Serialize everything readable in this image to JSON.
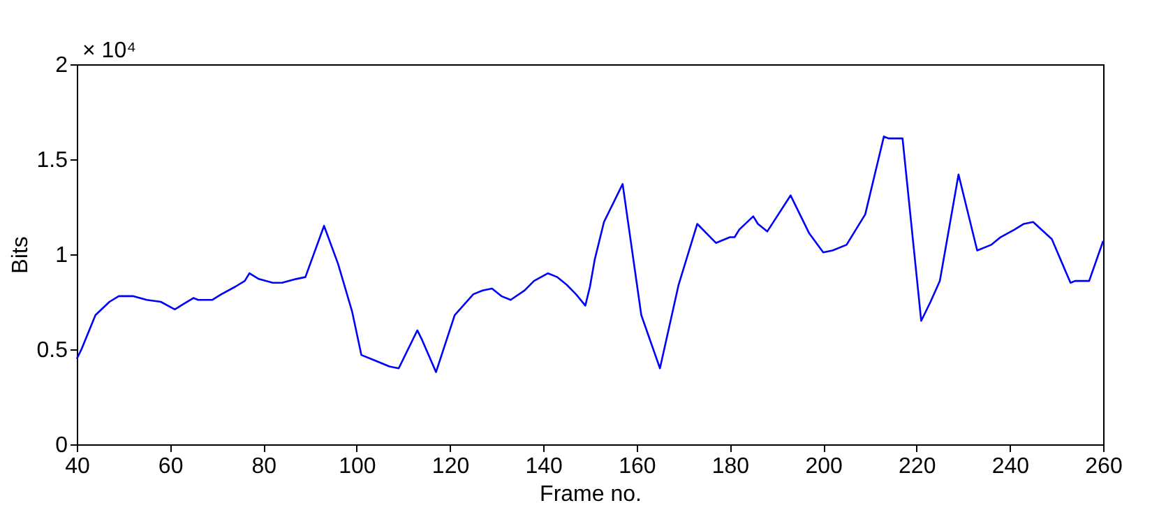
{
  "chart_data": {
    "type": "line",
    "xlabel": "Frame no.",
    "ylabel": "Bits",
    "annotations": [
      "× 10⁴"
    ],
    "x": [
      40,
      41,
      44,
      47,
      49,
      52,
      55,
      58,
      61,
      63,
      65,
      66,
      69,
      71,
      74,
      76,
      77,
      79,
      82,
      84,
      87,
      89,
      93,
      96,
      99,
      101,
      104,
      107,
      109,
      113,
      114,
      117,
      121,
      125,
      127,
      129,
      131,
      133,
      136,
      138,
      141,
      143,
      145,
      147,
      149,
      150,
      151,
      153,
      157,
      161,
      165,
      169,
      173,
      177,
      180,
      181,
      182,
      185,
      186,
      188,
      193,
      197,
      200,
      202,
      205,
      207,
      209,
      213,
      214,
      217,
      221,
      223,
      225,
      229,
      233,
      235,
      236,
      238,
      241,
      243,
      245,
      249,
      253,
      254,
      257,
      260
    ],
    "series": [
      {
        "color": "#0000ff",
        "values": [
          0.45,
          0.5,
          0.68,
          0.75,
          0.78,
          0.78,
          0.76,
          0.75,
          0.71,
          0.74,
          0.77,
          0.76,
          0.76,
          0.79,
          0.83,
          0.86,
          0.9,
          0.87,
          0.85,
          0.85,
          0.87,
          0.88,
          1.15,
          0.95,
          0.7,
          0.47,
          0.44,
          0.41,
          0.4,
          0.6,
          0.55,
          0.38,
          0.68,
          0.79,
          0.81,
          0.82,
          0.78,
          0.76,
          0.81,
          0.86,
          0.9,
          0.88,
          0.84,
          0.79,
          0.73,
          0.83,
          0.97,
          1.17,
          1.37,
          0.68,
          0.4,
          0.84,
          1.16,
          1.06,
          1.09,
          1.09,
          1.13,
          1.2,
          1.16,
          1.12,
          1.31,
          1.11,
          1.01,
          1.02,
          1.05,
          1.13,
          1.21,
          1.62,
          1.61,
          1.61,
          0.65,
          0.75,
          0.86,
          1.42,
          1.02,
          1.04,
          1.05,
          1.09,
          1.13,
          1.16,
          1.17,
          1.08,
          0.85,
          0.86,
          0.86,
          1.07
        ]
      }
    ],
    "xlim": [
      40,
      260
    ],
    "xticks": [
      40,
      60,
      80,
      100,
      120,
      140,
      160,
      180,
      200,
      220,
      240,
      260
    ],
    "ylim": [
      0,
      2
    ],
    "yticks": [
      0,
      0.5,
      1,
      1.5,
      2
    ],
    "grid": false,
    "legend": false,
    "line_style": "solid",
    "marker": "none"
  }
}
